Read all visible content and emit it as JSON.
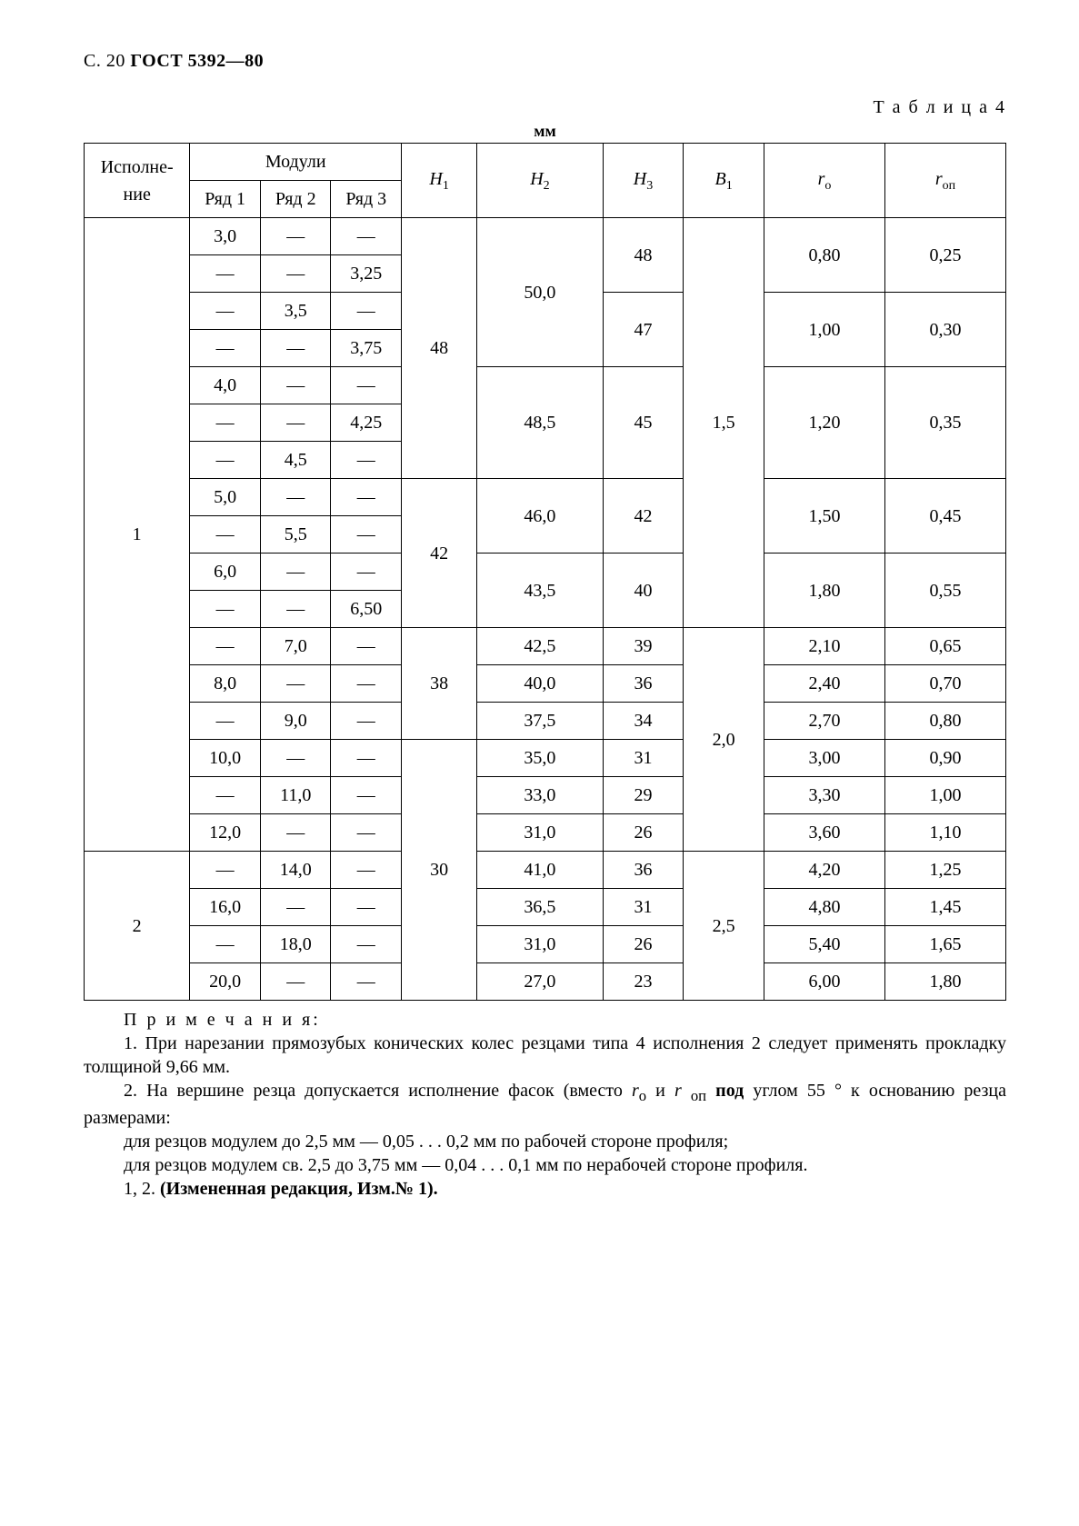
{
  "header": {
    "page_prefix": "С. 20",
    "gost": "ГОСТ 5392—80"
  },
  "table": {
    "caption_label": "Т а б л и ц а 4",
    "unit": "мм",
    "columns": {
      "exec": "Исполне-\nние",
      "modules": "Модули",
      "row1": "Ряд 1",
      "row2": "Ряд 2",
      "row3": "Ряд 3",
      "h1": "H₁",
      "h2": "H₂",
      "h3": "H₃",
      "b1": "B₁",
      "ro": "rₒ",
      "rop": "rₒₚ"
    },
    "exec_values": {
      "one": "1",
      "two": "2"
    },
    "h1_groups": {
      "g48": "48",
      "g42": "42",
      "g38": "38",
      "g30": "30"
    },
    "h2_groups": {
      "g50": "50,0",
      "g485": "48,5",
      "g46": "46,0",
      "g435": "43,5",
      "g425": "42,5",
      "g40": "40,0",
      "g375": "37,5",
      "g35": "35,0",
      "g33": "33,0",
      "g31a": "31,0",
      "g41": "41,0",
      "g365": "36,5",
      "g31b": "31,0",
      "g27": "27,0"
    },
    "h3_groups": {
      "v48": "48",
      "v47": "47",
      "v45": "45",
      "v42": "42",
      "v40": "40",
      "v39": "39",
      "v36a": "36",
      "v34": "34",
      "v31a": "31",
      "v29": "29",
      "v26a": "26",
      "v36b": "36",
      "v31b": "31",
      "v26b": "26",
      "v23": "23"
    },
    "b1_groups": {
      "g15": "1,5",
      "g20": "2,0",
      "g25": "2,5"
    },
    "ro_groups": {
      "v080": "0,80",
      "v100": "1,00",
      "v120": "1,20",
      "v150": "1,50",
      "v180": "1,80",
      "v210": "2,10",
      "v240": "2,40",
      "v270": "2,70",
      "v300": "3,00",
      "v330": "3,30",
      "v360": "3,60",
      "v420": "4,20",
      "v480": "4,80",
      "v540": "5,40",
      "v600": "6,00"
    },
    "rop_groups": {
      "v025": "0,25",
      "v030": "0,30",
      "v035": "0,35",
      "v045": "0,45",
      "v055": "0,55",
      "v065": "0,65",
      "v070": "0,70",
      "v080": "0,80",
      "v090": "0,90",
      "v100": "1,00",
      "v110": "1,10",
      "v125": "1,25",
      "v145": "1,45",
      "v165": "1,65",
      "v180": "1,80"
    },
    "mods": {
      "r1": {
        "a": "3,0",
        "b": "",
        "c": ""
      },
      "r2": {
        "a": "",
        "b": "",
        "c": "3,25"
      },
      "r3": {
        "a": "",
        "b": "3,5",
        "c": ""
      },
      "r4": {
        "a": "",
        "b": "",
        "c": "3,75"
      },
      "r5": {
        "a": "4,0",
        "b": "",
        "c": ""
      },
      "r6": {
        "a": "",
        "b": "",
        "c": "4,25"
      },
      "r7": {
        "a": "",
        "b": "4,5",
        "c": ""
      },
      "r8": {
        "a": "5,0",
        "b": "",
        "c": ""
      },
      "r9": {
        "a": "",
        "b": "5,5",
        "c": ""
      },
      "r10": {
        "a": "6,0",
        "b": "",
        "c": ""
      },
      "r11": {
        "a": "",
        "b": "",
        "c": "6,50"
      },
      "r12": {
        "a": "",
        "b": "7,0",
        "c": ""
      },
      "r13": {
        "a": "8,0",
        "b": "",
        "c": ""
      },
      "r14": {
        "a": "",
        "b": "9,0",
        "c": ""
      },
      "r15": {
        "a": "10,0",
        "b": "",
        "c": ""
      },
      "r16": {
        "a": "",
        "b": "11,0",
        "c": ""
      },
      "r17": {
        "a": "12,0",
        "b": "",
        "c": ""
      },
      "r18": {
        "a": "",
        "b": "14,0",
        "c": ""
      },
      "r19": {
        "a": "16,0",
        "b": "",
        "c": ""
      },
      "r20": {
        "a": "",
        "b": "18,0",
        "c": ""
      },
      "r21": {
        "a": "20,0",
        "b": "",
        "c": ""
      }
    }
  },
  "notes": {
    "title": "П р и м е ч а н и я:",
    "n1": "1. При нарезании прямозубых конических колес резцами типа 4 исполнения 2 следует применять прокладку толщиной 9,66 мм.",
    "n2a": "2. На вершине резца допускается исполнение фасок (вместо ",
    "n2_ro": "r",
    "n2_ro_sub": "о",
    "n2_and": " и ",
    "n2_rop": "r ",
    "n2_rop_sub": "оп",
    "n2b": " под углом 55 ° к основанию резца размерами:",
    "n3": "для резцов модулем до 2,5 мм — 0,05 . . . 0,2 мм по рабочей стороне профиля;",
    "n4": "для резцов модулем св. 2,5 до 3,75 мм — 0,04 . . . 0,1 мм по нерабочей стороне профиля.",
    "n5a": "1, 2. ",
    "n5b": "(Измененная редакция, Изм.№ 1)."
  }
}
